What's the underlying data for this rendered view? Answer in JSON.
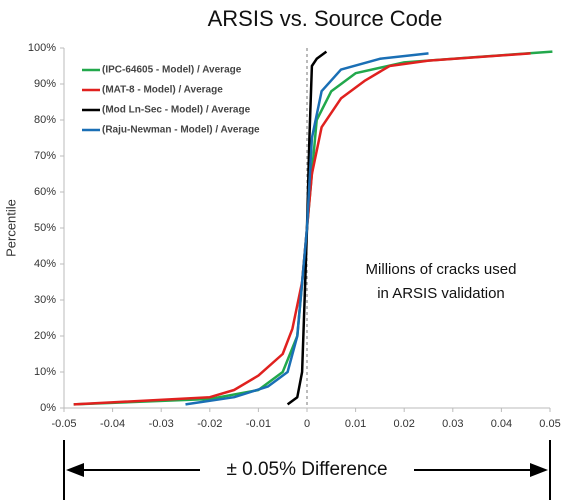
{
  "chart_data": {
    "type": "line",
    "title": "ARSIS vs. Source Code",
    "y_label": "Percentile",
    "annotation": [
      "Millions of cracks used",
      "in ARSIS validation"
    ],
    "range_label": "± 0.05% Difference",
    "legend": "upper left",
    "xlim": [
      -0.05,
      0.05
    ],
    "xticks": [
      -0.05,
      -0.04,
      -0.03,
      -0.02,
      -0.01,
      0,
      0.01,
      0.02,
      0.03,
      0.04,
      0.05
    ],
    "ylim": [
      0,
      100
    ],
    "yticks": [
      {
        "value": 0,
        "label": "0%"
      },
      {
        "value": 10,
        "label": "10%"
      },
      {
        "value": 20,
        "label": "20%"
      },
      {
        "value": 30,
        "label": "30%"
      },
      {
        "value": 40,
        "label": "40%"
      },
      {
        "value": 50,
        "label": "50%"
      },
      {
        "value": 60,
        "label": "60%"
      },
      {
        "value": 70,
        "label": "70%"
      },
      {
        "value": 80,
        "label": "80%"
      },
      {
        "value": 90,
        "label": "90%"
      },
      {
        "value": 100,
        "label": "100%"
      }
    ],
    "series": [
      {
        "name": "(IPC-64605 - Model) / Average",
        "color": "#22a84c",
        "x": [
          -0.048,
          -0.02,
          -0.01,
          -0.005,
          -0.002,
          0,
          0.002,
          0.005,
          0.01,
          0.02,
          0.035,
          0.0505
        ],
        "values": [
          1,
          2.5,
          5,
          10,
          20,
          50,
          80,
          88,
          93,
          96,
          97.5,
          99
        ]
      },
      {
        "name": "(MAT-8 - Model) / Average",
        "color": "#e0211f",
        "x": [
          -0.048,
          -0.02,
          -0.015,
          -0.01,
          -0.005,
          -0.003,
          -0.001,
          0,
          0.001,
          0.003,
          0.007,
          0.012,
          0.017,
          0.025,
          0.046
        ],
        "values": [
          1,
          3,
          5,
          9,
          15,
          22,
          35,
          50,
          65,
          78,
          86,
          91,
          95,
          96.5,
          98.5
        ]
      },
      {
        "name": "(Mod Ln-Sec - Model) / Average",
        "color": "#000000",
        "x": [
          -0.004,
          -0.002,
          -0.001,
          -0.0005,
          0,
          0.0005,
          0.001,
          0.002,
          0.004
        ],
        "values": [
          1,
          3,
          10,
          30,
          50,
          75,
          95,
          97,
          99
        ]
      },
      {
        "name": "(Raju-Newman - Model) / Average",
        "color": "#1a6fb5",
        "x": [
          -0.025,
          -0.015,
          -0.008,
          -0.004,
          -0.002,
          0,
          0.001,
          0.003,
          0.007,
          0.015,
          0.025
        ],
        "values": [
          1,
          3,
          6,
          10,
          20,
          50,
          75,
          88,
          94,
          97,
          98.5
        ]
      }
    ]
  }
}
